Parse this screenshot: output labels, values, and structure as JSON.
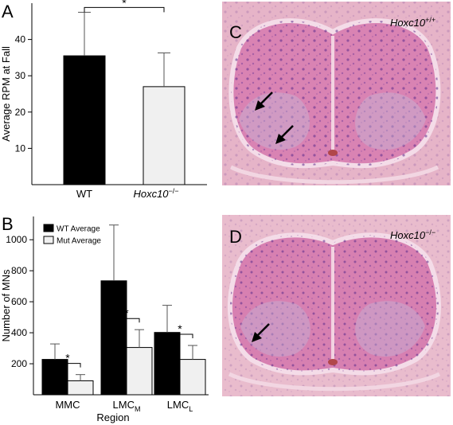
{
  "panel_labels": {
    "a": "A",
    "b": "B",
    "c": "C",
    "d": "D"
  },
  "chart_data": [
    {
      "type": "bar",
      "ylabel": "Average RPM at Fall",
      "ylim": [
        0,
        50
      ],
      "yticks": [
        10,
        20,
        30,
        40
      ],
      "categories": [
        "WT",
        "Hoxc10"
      ],
      "category_superscripts": [
        "",
        "−/−"
      ],
      "values": [
        35.5,
        27.0
      ],
      "errors": [
        12.0,
        9.3
      ],
      "colors": [
        "#000000",
        "#f0f0f0"
      ],
      "significance": "*",
      "legend": "none",
      "grid": false
    },
    {
      "type": "bar",
      "xlabel": "Region",
      "ylabel": "Number of MNs",
      "ylim": [
        0,
        1150
      ],
      "yticks": [
        200,
        400,
        600,
        800,
        1000
      ],
      "categories": [
        "MMC",
        "LMC",
        "LMC"
      ],
      "category_subscripts": [
        "",
        "M",
        "L"
      ],
      "series": [
        {
          "name": "WT Average",
          "values": [
            228,
            735,
            402
          ],
          "errors": [
            100,
            360,
            175
          ],
          "color": "#000000"
        },
        {
          "name": "Mut Average",
          "values": [
            90,
            305,
            228
          ],
          "errors": [
            40,
            115,
            90
          ],
          "color": "#f0f0f0"
        }
      ],
      "significance": [
        "*",
        "*",
        "*"
      ],
      "legend": "top-left",
      "grid": false
    }
  ],
  "images": [
    {
      "label": "Hoxc10",
      "label_superscript": "+/+",
      "background": "#e9b9cb",
      "tissue": "#c96aa6",
      "arrows": 2
    },
    {
      "label": "Hoxc10",
      "label_superscript": "−/−",
      "background": "#ebc0d0",
      "tissue": "#c56aa3",
      "arrows": 1
    }
  ]
}
